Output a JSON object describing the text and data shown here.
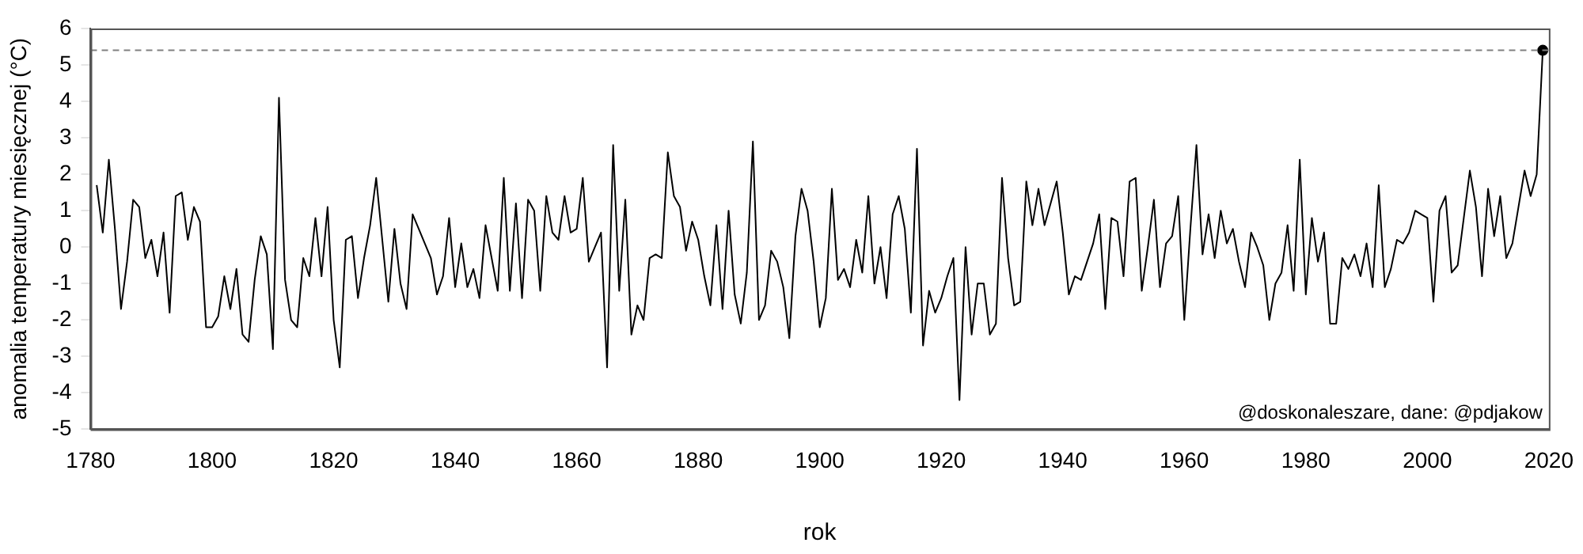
{
  "chart_data": {
    "type": "line",
    "xlabel": "rok",
    "ylabel": "anomalia temperatury miesięcznej (°C)",
    "xlim": [
      1780,
      2020
    ],
    "xticks": [
      1780,
      1800,
      1820,
      1840,
      1860,
      1880,
      1900,
      1920,
      1940,
      1960,
      1980,
      2000,
      2020
    ],
    "ylim": [
      -5,
      6
    ],
    "yticks": [
      -5,
      -4,
      -3,
      -2,
      -1,
      0,
      1,
      2,
      3,
      4,
      5,
      6
    ],
    "grid": false,
    "legend": false,
    "annotations": [
      "@doskonaleszare, dane: @pdjakow"
    ],
    "ref_lines": [
      {
        "axis": "y",
        "value": 5.4,
        "color": "#808080",
        "line_style": "dashed"
      }
    ],
    "series": [
      {
        "color": "#000000",
        "marker": "none",
        "line_style": "solid",
        "x": [
          1781,
          1782,
          1783,
          1784,
          1785,
          1786,
          1787,
          1788,
          1789,
          1790,
          1791,
          1792,
          1793,
          1794,
          1795,
          1796,
          1797,
          1798,
          1799,
          1800,
          1801,
          1802,
          1803,
          1804,
          1805,
          1806,
          1807,
          1808,
          1809,
          1810,
          1811,
          1812,
          1813,
          1814,
          1815,
          1816,
          1817,
          1818,
          1819,
          1820,
          1821,
          1822,
          1823,
          1824,
          1825,
          1826,
          1827,
          1828,
          1829,
          1830,
          1831,
          1832,
          1833,
          1834,
          1835,
          1836,
          1837,
          1838,
          1839,
          1840,
          1841,
          1842,
          1843,
          1844,
          1845,
          1846,
          1847,
          1848,
          1849,
          1850,
          1851,
          1852,
          1853,
          1854,
          1855,
          1856,
          1857,
          1858,
          1859,
          1860,
          1861,
          1862,
          1863,
          1864,
          1865,
          1866,
          1867,
          1868,
          1869,
          1870,
          1871,
          1872,
          1873,
          1874,
          1875,
          1876,
          1877,
          1878,
          1879,
          1880,
          1881,
          1882,
          1883,
          1884,
          1885,
          1886,
          1887,
          1888,
          1889,
          1890,
          1891,
          1892,
          1893,
          1894,
          1895,
          1896,
          1897,
          1898,
          1899,
          1900,
          1901,
          1902,
          1903,
          1904,
          1905,
          1906,
          1907,
          1908,
          1909,
          1910,
          1911,
          1912,
          1913,
          1914,
          1915,
          1916,
          1917,
          1918,
          1919,
          1920,
          1921,
          1922,
          1923,
          1924,
          1925,
          1926,
          1927,
          1928,
          1929,
          1930,
          1931,
          1932,
          1933,
          1934,
          1935,
          1936,
          1937,
          1938,
          1939,
          1940,
          1941,
          1942,
          1943,
          1944,
          1945,
          1946,
          1947,
          1948,
          1949,
          1950,
          1951,
          1952,
          1953,
          1954,
          1955,
          1956,
          1957,
          1958,
          1959,
          1960,
          1961,
          1962,
          1963,
          1964,
          1965,
          1966,
          1967,
          1968,
          1969,
          1970,
          1971,
          1972,
          1973,
          1974,
          1975,
          1976,
          1977,
          1978,
          1979,
          1980,
          1981,
          1982,
          1983,
          1984,
          1985,
          1986,
          1987,
          1988,
          1989,
          1990,
          1991,
          1992,
          1993,
          1994,
          1995,
          1996,
          1997,
          1998,
          1999,
          2000,
          2001,
          2002,
          2003,
          2004,
          2005,
          2006,
          2007,
          2008,
          2009,
          2010,
          2011,
          2012,
          2013,
          2014,
          2015,
          2016,
          2017,
          2018,
          2019
        ],
        "values": [
          1.7,
          0.4,
          2.4,
          0.5,
          -1.7,
          -0.4,
          1.3,
          1.1,
          -0.3,
          0.2,
          -0.8,
          0.4,
          -1.8,
          1.4,
          1.5,
          0.2,
          1.1,
          0.7,
          -2.2,
          -2.2,
          -1.9,
          -0.8,
          -1.7,
          -0.6,
          -2.4,
          -2.6,
          -0.9,
          0.3,
          -0.2,
          -2.8,
          4.1,
          -0.9,
          -2.0,
          -2.2,
          -0.3,
          -0.8,
          0.8,
          -0.8,
          1.1,
          -2.0,
          -3.3,
          0.2,
          0.3,
          -1.4,
          -0.3,
          0.6,
          1.9,
          0.2,
          -1.5,
          0.5,
          -1.0,
          -1.7,
          0.9,
          0.5,
          0.1,
          -0.3,
          -1.3,
          -0.8,
          0.8,
          -1.1,
          0.1,
          -1.1,
          -0.6,
          -1.4,
          0.6,
          -0.3,
          -1.2,
          1.9,
          -1.2,
          1.2,
          -1.4,
          1.3,
          1.0,
          -1.2,
          1.4,
          0.4,
          0.2,
          1.4,
          0.4,
          0.5,
          1.9,
          -0.4,
          0.0,
          0.4,
          -3.3,
          2.8,
          -1.2,
          1.3,
          -2.4,
          -1.6,
          -2.0,
          -0.3,
          -0.2,
          -0.3,
          2.6,
          1.4,
          1.1,
          -0.1,
          0.7,
          0.2,
          -0.8,
          -1.6,
          0.6,
          -1.7,
          1.0,
          -1.3,
          -2.1,
          -0.7,
          2.9,
          -2.0,
          -1.6,
          -0.1,
          -0.4,
          -1.1,
          -2.5,
          0.3,
          1.6,
          1.0,
          -0.4,
          -2.2,
          -1.4,
          1.6,
          -0.9,
          -0.6,
          -1.1,
          0.2,
          -0.7,
          1.4,
          -1.0,
          0.0,
          -1.4,
          0.9,
          1.4,
          0.5,
          -1.8,
          2.7,
          -2.7,
          -1.2,
          -1.8,
          -1.4,
          -0.8,
          -0.3,
          -4.2,
          0.0,
          -2.4,
          -1.0,
          -1.0,
          -2.4,
          -2.1,
          1.9,
          -0.3,
          -1.6,
          -1.5,
          1.8,
          0.6,
          1.6,
          0.6,
          1.2,
          1.8,
          0.4,
          -1.3,
          -0.8,
          -0.9,
          -0.4,
          0.1,
          0.9,
          -1.7,
          0.8,
          0.7,
          -0.8,
          1.8,
          1.9,
          -1.2,
          0.0,
          1.3,
          -1.1,
          0.1,
          0.3,
          1.4,
          -2.0,
          0.5,
          2.8,
          -0.2,
          0.9,
          -0.3,
          1.0,
          0.1,
          0.5,
          -0.4,
          -1.1,
          0.4,
          0.0,
          -0.5,
          -2.0,
          -1.0,
          -0.7,
          0.6,
          -1.2,
          2.4,
          -1.3,
          0.8,
          -0.4,
          0.4,
          -2.1,
          -2.1,
          -0.3,
          -0.6,
          -0.2,
          -0.8,
          0.1,
          -1.1,
          1.7,
          -1.1,
          -0.6,
          0.2,
          0.1,
          0.4,
          1.0,
          0.9,
          0.8,
          -1.5,
          1.0,
          1.4,
          -0.7,
          -0.5,
          0.8,
          2.1,
          1.1,
          -0.8,
          1.6,
          0.3,
          1.4,
          -0.3,
          0.1,
          1.1,
          2.1,
          1.4,
          2.0,
          5.4
        ]
      },
      {
        "type": "scatter",
        "color": "#000000",
        "marker": "circle",
        "x": [
          2019
        ],
        "values": [
          5.4
        ]
      }
    ]
  }
}
